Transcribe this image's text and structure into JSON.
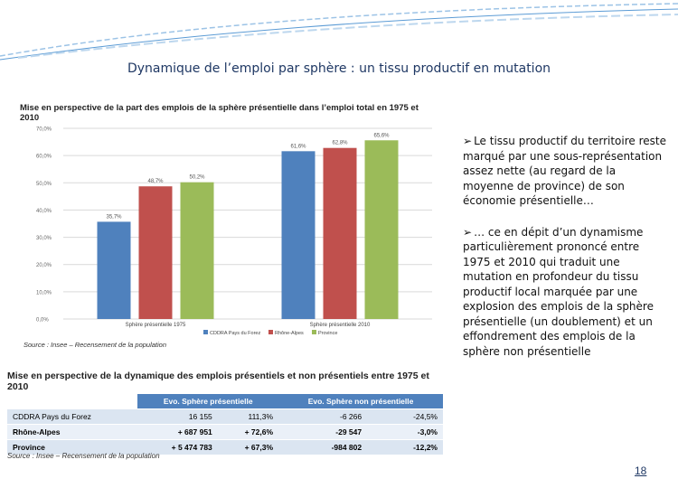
{
  "slide": {
    "title": "Dynamique de l’emploi par sphère : un tissu productif en mutation",
    "page_number": "18"
  },
  "chart_data": {
    "type": "bar",
    "title": "Mise en perspective de la part des emplois de la sphère présentielle dans l’emploi total en 1975 et 2010",
    "categories": [
      "Sphère présentielle 1975",
      "Sphère présentielle 2010"
    ],
    "series": [
      {
        "name": "CDDRA Pays du Forez",
        "color": "#4f81bd",
        "values": [
          35.7,
          61.6
        ]
      },
      {
        "name": "Rhône-Alpes",
        "color": "#c0504d",
        "values": [
          48.7,
          62.8
        ]
      },
      {
        "name": "Province",
        "color": "#9bbb59",
        "values": [
          50.2,
          65.6
        ]
      }
    ],
    "value_labels": [
      [
        "35,7%",
        "61,6%"
      ],
      [
        "48,7%",
        "62,8%"
      ],
      [
        "50,2%",
        "65,6%"
      ]
    ],
    "y_ticks": [
      0,
      10,
      20,
      30,
      40,
      50,
      60,
      70
    ],
    "y_tick_labels": [
      "0,0%",
      "10,0%",
      "20,0%",
      "30,0%",
      "40,0%",
      "50,0%",
      "60,0%",
      "70,0%"
    ],
    "ylim": [
      0,
      70
    ],
    "grid": true,
    "legend_position": "bottom",
    "source": "Source : Insee – Recensement de la population"
  },
  "bullets": [
    "Le tissu productif du territoire reste marqué par une sous-représentation assez nette (au regard de la moyenne de province) de son économie présentielle…",
    "… ce en dépit d’un dynamisme particulièrement prononcé entre 1975 et 2010 qui traduit une mutation en profondeur du tissu productif local marquée par une explosion des emplois de la sphère présentielle (un doublement) et un effondrement des emplois de la sphère non présentielle"
  ],
  "table": {
    "title": "Mise en perspective de la dynamique des emplois présentiels et non présentiels entre 1975 et 2010",
    "headers": [
      "",
      "Evo. Sphère présentielle",
      "Evo. Sphère non présentielle"
    ],
    "rows": [
      {
        "label": "CDDRA Pays du Forez",
        "pres_abs": "16 155",
        "pres_pct": "111,3%",
        "nonpres_abs": "-6 266",
        "nonpres_pct": "-24,5%"
      },
      {
        "label": "Rhône-Alpes",
        "pres_abs": "+ 687 951",
        "pres_pct": "+ 72,6%",
        "nonpres_abs": "-29 547",
        "nonpres_pct": "-3,0%"
      },
      {
        "label": "Province",
        "pres_abs": "+ 5 474 783",
        "pres_pct": "+ 67,3%",
        "nonpres_abs": "-984 802",
        "nonpres_pct": "-12,2%"
      }
    ],
    "source": "Source : Insee – Recensement de la population"
  }
}
